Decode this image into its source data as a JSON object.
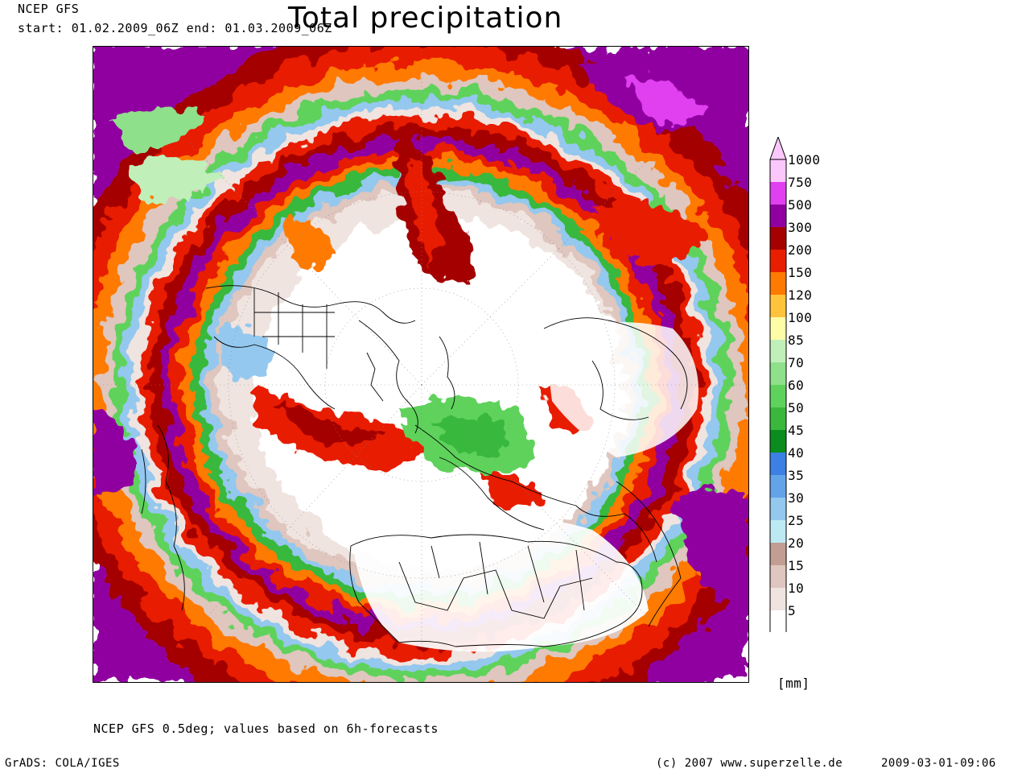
{
  "header": {
    "source": "NCEP GFS",
    "period": "start: 01.02.2009_06Z end: 01.03.2009_06Z",
    "title": "Total precipitation"
  },
  "map": {
    "projection": "north polar stereographic",
    "field": "total precipitation accumulation"
  },
  "legend": {
    "unit": "[mm]",
    "classes": [
      {
        "value": "5",
        "color": "#ffffff"
      },
      {
        "value": "10",
        "color": "#f0e4e0"
      },
      {
        "value": "15",
        "color": "#dfc6be"
      },
      {
        "value": "20",
        "color": "#c29e92"
      },
      {
        "value": "25",
        "color": "#bde9f3"
      },
      {
        "value": "30",
        "color": "#94c8ee"
      },
      {
        "value": "35",
        "color": "#63a4e8"
      },
      {
        "value": "40",
        "color": "#3b80e2"
      },
      {
        "value": "45",
        "color": "#0a8c1e"
      },
      {
        "value": "50",
        "color": "#39b83c"
      },
      {
        "value": "60",
        "color": "#5fd25c"
      },
      {
        "value": "70",
        "color": "#8fe08b"
      },
      {
        "value": "85",
        "color": "#c0efb9"
      },
      {
        "value": "100",
        "color": "#fffca8"
      },
      {
        "value": "120",
        "color": "#ffc43c"
      },
      {
        "value": "150",
        "color": "#ff7a00"
      },
      {
        "value": "200",
        "color": "#e81e00"
      },
      {
        "value": "300",
        "color": "#a40000"
      },
      {
        "value": "500",
        "color": "#9000a0"
      },
      {
        "value": "750",
        "color": "#e040f0"
      },
      {
        "value": "1000",
        "color": "#fcc8fc"
      }
    ]
  },
  "footer": {
    "model_note": "NCEP GFS 0.5deg; values based on 6h-forecasts",
    "software": "GrADS: COLA/IGES",
    "copyright": "(c) 2007 www.superzelle.de",
    "timestamp": "2009-03-01-09:06"
  }
}
